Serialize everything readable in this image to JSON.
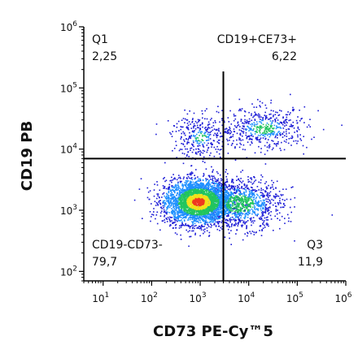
{
  "chart_data": {
    "type": "scatter",
    "subtype": "flow-cytometry-density-plot",
    "xlabel": "CD73 PE-Cy™5",
    "ylabel": "CD19 PB",
    "x_scale": "log",
    "y_scale": "log",
    "xlim": [
      4,
      1000000
    ],
    "ylim": [
      70,
      1000000
    ],
    "x_ticks": [
      {
        "base": "10",
        "exp": "1",
        "value": 10
      },
      {
        "base": "10",
        "exp": "2",
        "value": 100
      },
      {
        "base": "10",
        "exp": "3",
        "value": 1000
      },
      {
        "base": "10",
        "exp": "4",
        "value": 10000
      },
      {
        "base": "10",
        "exp": "5",
        "value": 100000
      },
      {
        "base": "10",
        "exp": "6",
        "value": 1000000
      }
    ],
    "y_ticks": [
      {
        "base": "10",
        "exp": "2",
        "value": 100
      },
      {
        "base": "10",
        "exp": "3",
        "value": 1000
      },
      {
        "base": "10",
        "exp": "4",
        "value": 10000
      },
      {
        "base": "10",
        "exp": "5",
        "value": 100000
      },
      {
        "base": "10",
        "exp": "6",
        "value": 1000000
      }
    ],
    "gates": {
      "x_threshold": 3000,
      "y_threshold": 7000
    },
    "quadrants": [
      {
        "position": "top-left",
        "name": "Q1",
        "value": "2,25"
      },
      {
        "position": "top-right",
        "name": "CD19+CE73+",
        "value": "6,22"
      },
      {
        "position": "bottom-left",
        "name": "CD19-CD73-",
        "value": "79,7"
      },
      {
        "position": "bottom-right",
        "name": "Q3",
        "value": "11,9"
      }
    ],
    "populations": [
      {
        "center_x": 900,
        "center_y": 1400,
        "spread_x_decades": 0.35,
        "spread_y_decades": 0.18,
        "weight": 0.62
      },
      {
        "center_x": 6000,
        "center_y": 1300,
        "spread_x_decades": 0.45,
        "spread_y_decades": 0.2,
        "weight": 0.22
      },
      {
        "center_x": 20000,
        "center_y": 22000,
        "spread_x_decades": 0.45,
        "spread_y_decades": 0.17,
        "weight": 0.1
      },
      {
        "center_x": 1000,
        "center_y": 16000,
        "spread_x_decades": 0.3,
        "spread_y_decades": 0.18,
        "weight": 0.06
      }
    ],
    "colors": {
      "sparse": "#1b1bd6",
      "low": "#1e90ff",
      "mid": "#22c55e",
      "high": "#f2e21a",
      "peak": "#ef3a1f",
      "gate_line": "#000000",
      "axis": "#000000"
    }
  }
}
